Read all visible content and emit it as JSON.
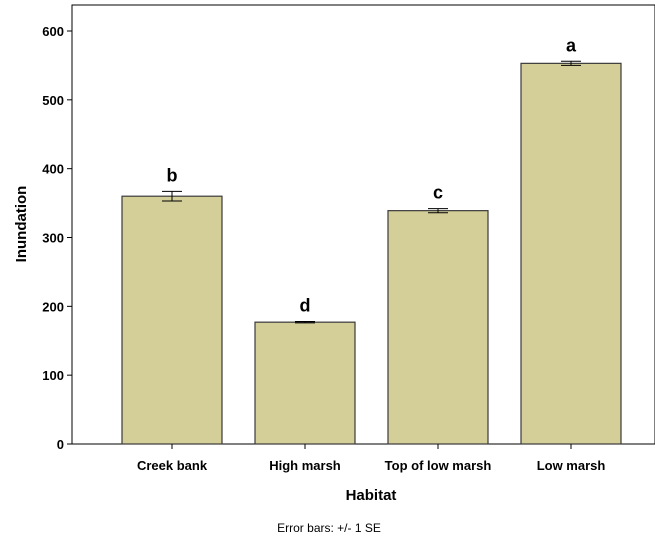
{
  "chart_data": {
    "type": "bar",
    "categories": [
      "Creek bank",
      "High marsh",
      "Top of low marsh",
      "Low marsh"
    ],
    "values": [
      360,
      177,
      339,
      553
    ],
    "error_se": [
      7,
      1,
      3,
      3
    ],
    "significance_labels": [
      "b",
      "d",
      "c",
      "a"
    ],
    "xlabel": "Habitat",
    "ylabel": "Inundation",
    "ylim": [
      0,
      620
    ],
    "yticks": [
      0,
      100,
      200,
      300,
      400,
      500,
      600
    ],
    "grid": false,
    "footnote": "Error bars: +/- 1 SE",
    "colors": {
      "bar_fill": "#d4cf99",
      "bar_stroke": "#3a3a3a",
      "axis": "#000000"
    }
  }
}
